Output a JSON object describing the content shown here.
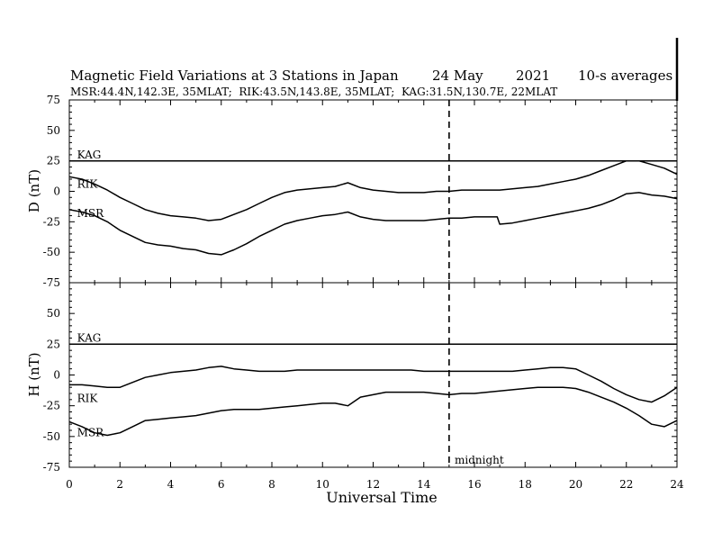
{
  "chart_data": {
    "type": "line",
    "title": "Magnetic Field Variations at 3 Stations in Japan",
    "date": "24 May",
    "year": "2021",
    "averaging": "10-s averages",
    "subtitle": "MSR:44.4N,142.3E, 35MLAT;  RIK:43.5N,143.8E, 35MLAT;  KAG:31.5N,130.7E, 22MLAT",
    "xlabel": "Universal Time",
    "xlim": [
      0,
      24
    ],
    "xticks": [
      "0",
      "2",
      "4",
      "6",
      "8",
      "10",
      "12",
      "14",
      "16",
      "18",
      "20",
      "22",
      "24"
    ],
    "ylim": [
      -75,
      75
    ],
    "yticks": [
      "75",
      "50",
      "25",
      "0",
      "-25",
      "-50",
      "-75"
    ],
    "marker": {
      "x": 15,
      "label": "midnight"
    },
    "grid": false,
    "panels": [
      {
        "ylabel": "D (nT)",
        "series": [
          {
            "name": "KAG",
            "label_pos": [
              0.2,
              30
            ],
            "x": [
              0,
              24
            ],
            "y": [
              25,
              25
            ]
          },
          {
            "name": "RIK",
            "label_pos": [
              0.2,
              6
            ],
            "x": [
              0,
              0.5,
              1,
              1.5,
              2,
              2.5,
              3,
              3.5,
              4,
              4.5,
              5,
              5.5,
              6,
              6.5,
              7,
              7.5,
              8,
              8.5,
              9,
              9.5,
              10,
              10.5,
              11,
              11.5,
              12,
              12.5,
              13,
              13.5,
              14,
              14.5,
              15,
              15.5,
              16,
              16.5,
              17,
              17.5,
              18,
              18.5,
              19,
              19.5,
              20,
              20.5,
              21,
              21.5,
              22,
              22.5,
              23,
              23.5,
              24
            ],
            "y": [
              12,
              10,
              6,
              1,
              -5,
              -10,
              -15,
              -18,
              -20,
              -21,
              -22,
              -24,
              -23,
              -19,
              -15,
              -10,
              -5,
              -1,
              1,
              2,
              3,
              4,
              7,
              3,
              1,
              0,
              -1,
              -1,
              -1,
              0,
              0,
              1,
              1,
              1,
              1,
              2,
              3,
              4,
              6,
              8,
              10,
              13,
              17,
              21,
              25,
              25,
              22,
              19,
              14
            ]
          },
          {
            "name": "MSR",
            "label_pos": [
              0.2,
              -18
            ],
            "x": [
              0,
              0.5,
              1,
              1.5,
              2,
              2.5,
              3,
              3.5,
              4,
              4.5,
              5,
              5.5,
              6,
              6.5,
              7,
              7.5,
              8,
              8.5,
              9,
              9.5,
              10,
              10.5,
              11,
              11.5,
              12,
              12.5,
              13,
              13.5,
              14,
              14.5,
              15,
              15.5,
              16,
              16.5,
              16.9,
              17,
              17.5,
              18,
              18.5,
              19,
              19.5,
              20,
              20.5,
              21,
              21.5,
              22,
              22.5,
              23,
              23.5,
              24
            ],
            "y": [
              -15,
              -17,
              -20,
              -25,
              -32,
              -37,
              -42,
              -44,
              -45,
              -47,
              -48,
              -51,
              -52,
              -48,
              -43,
              -37,
              -32,
              -27,
              -24,
              -22,
              -20,
              -19,
              -17,
              -21,
              -23,
              -24,
              -24,
              -24,
              -24,
              -23,
              -22,
              -22,
              -21,
              -21,
              -21,
              -27,
              -26,
              -24,
              -22,
              -20,
              -18,
              -16,
              -14,
              -11,
              -7,
              -2,
              -1,
              -3,
              -4,
              -6
            ]
          }
        ]
      },
      {
        "ylabel": "H (nT)",
        "series": [
          {
            "name": "KAG",
            "label_pos": [
              0.2,
              30
            ],
            "x": [
              0,
              24
            ],
            "y": [
              25,
              25
            ]
          },
          {
            "name": "RIK",
            "label_pos": [
              0.2,
              -19
            ],
            "x": [
              0,
              0.5,
              1,
              1.5,
              2,
              2.5,
              3,
              3.5,
              4,
              4.5,
              5,
              5.5,
              6,
              6.5,
              7,
              7.5,
              8,
              8.5,
              9,
              9.5,
              10,
              10.5,
              11,
              11.5,
              12,
              12.5,
              13,
              13.5,
              14,
              14.5,
              15,
              15.5,
              16,
              16.5,
              17,
              17.5,
              18,
              18.5,
              19,
              19.5,
              20,
              20.5,
              21,
              21.5,
              22,
              22.5,
              23,
              23.5,
              24
            ],
            "y": [
              -8,
              -8,
              -9,
              -10,
              -10,
              -6,
              -2,
              0,
              2,
              3,
              4,
              6,
              7,
              5,
              4,
              3,
              3,
              3,
              4,
              4,
              4,
              4,
              4,
              4,
              4,
              4,
              4,
              4,
              3,
              3,
              3,
              3,
              3,
              3,
              3,
              3,
              4,
              5,
              6,
              6,
              5,
              0,
              -5,
              -11,
              -16,
              -20,
              -22,
              -17,
              -10
            ]
          },
          {
            "name": "MSR",
            "label_pos": [
              0.2,
              -47
            ],
            "x": [
              0,
              0.5,
              1,
              1.5,
              2,
              2.5,
              3,
              3.5,
              4,
              4.5,
              5,
              5.5,
              6,
              6.5,
              7,
              7.5,
              8,
              8.5,
              9,
              9.5,
              10,
              10.5,
              11,
              11.5,
              12,
              12.5,
              13,
              13.5,
              14,
              14.5,
              15,
              15.5,
              16,
              16.5,
              17,
              17.5,
              18,
              18.5,
              19,
              19.5,
              20,
              20.5,
              21,
              21.5,
              22,
              22.5,
              23,
              23.5,
              24
            ],
            "y": [
              -38,
              -42,
              -47,
              -49,
              -47,
              -42,
              -37,
              -36,
              -35,
              -34,
              -33,
              -31,
              -29,
              -28,
              -28,
              -28,
              -27,
              -26,
              -25,
              -24,
              -23,
              -23,
              -25,
              -18,
              -16,
              -14,
              -14,
              -14,
              -14,
              -15,
              -16,
              -15,
              -15,
              -14,
              -13,
              -12,
              -11,
              -10,
              -10,
              -10,
              -11,
              -14,
              -18,
              -22,
              -27,
              -33,
              -40,
              -42,
              -37
            ]
          }
        ]
      }
    ]
  }
}
